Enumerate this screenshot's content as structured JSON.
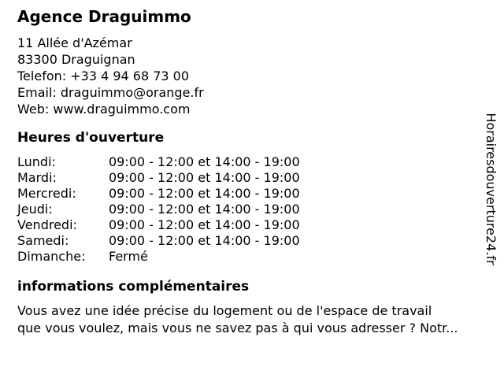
{
  "page": {
    "background_color": "#ffffff",
    "text_color": "#000000"
  },
  "business": {
    "name": "Agence Draguimmo"
  },
  "contact": {
    "lines": [
      "11 Allée d'Azémar",
      "83300 Draguignan",
      "Telefon: +33 4 94 68 73 00",
      "Email: draguimmo@orange.fr",
      "Web: www.draguimmo.com"
    ]
  },
  "hours": {
    "heading": "Heures d'ouverture",
    "rows": [
      {
        "day": "Lundi:",
        "time": "09:00 - 12:00 et 14:00 - 19:00"
      },
      {
        "day": "Mardi:",
        "time": "09:00 - 12:00 et 14:00 - 19:00"
      },
      {
        "day": "Mercredi:",
        "time": "09:00 - 12:00 et 14:00 - 19:00"
      },
      {
        "day": "Jeudi:",
        "time": "09:00 - 12:00 et 14:00 - 19:00"
      },
      {
        "day": "Vendredi:",
        "time": "09:00 - 12:00 et 14:00 - 19:00"
      },
      {
        "day": "Samedi:",
        "time": "09:00 - 12:00 et 14:00 - 19:00"
      },
      {
        "day": "Dimanche:",
        "time": "Fermé"
      }
    ]
  },
  "info": {
    "heading": "informations complémentaires",
    "lines": [
      "Vous avez une idée précise du logement ou de l'espace de travail",
      "que vous voulez, mais vous ne savez pas à qui vous adresser ? Notr..."
    ]
  },
  "watermark": {
    "text": "Horairesdouverture24.fr"
  }
}
